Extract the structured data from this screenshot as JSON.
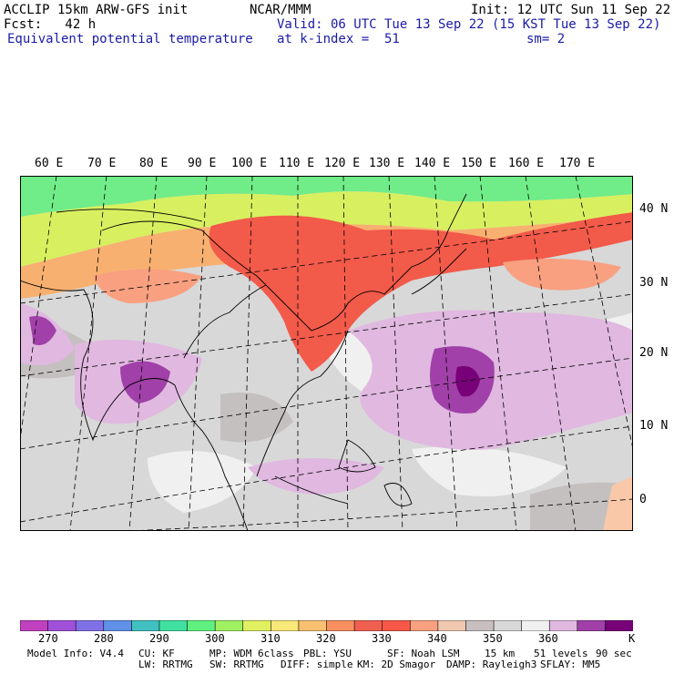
{
  "header": {
    "model_title": "ACCLIP 15km ARW-GFS init",
    "center": "NCAR/MMM",
    "init": "Init: 12 UTC Sun 11 Sep 22",
    "fcst": "Fcst:   42 h",
    "valid": "Valid: 06 UTC Tue 13 Sep 22 (15 KST Tue 13 Sep 22)",
    "field": "Equivalent potential temperature",
    "level": "at k-index =  51",
    "smoothing": "sm= 2"
  },
  "axes": {
    "longitudes": [
      "60 E",
      "70 E",
      "80 E",
      "90 E",
      "100 E",
      "110 E",
      "120 E",
      "130 E",
      "140 E",
      "150 E",
      "160 E",
      "170 E"
    ],
    "latitudes": [
      "40 N",
      "30 N",
      "20 N",
      "10 N",
      "0"
    ]
  },
  "colorbar": {
    "colors": [
      "#c040c0",
      "#a050d8",
      "#8070e8",
      "#6090e8",
      "#40c0c0",
      "#40e0a0",
      "#60f080",
      "#a0f060",
      "#e0f060",
      "#f8e878",
      "#f8c070",
      "#f89060",
      "#f06050",
      "#f85848",
      "#f8a080",
      "#f0c8b0",
      "#c8c0c0",
      "#d8d8d8",
      "#f0f0f0",
      "#e0b8e0",
      "#a040a8",
      "#780078"
    ],
    "labels": [
      "270",
      "280",
      "290",
      "300",
      "310",
      "320",
      "330",
      "340",
      "350",
      "360",
      "K"
    ]
  },
  "footer": {
    "line1": [
      "Model Info: V4.4",
      "CU: KF",
      "MP: WDM 6class",
      "PBL: YSU",
      "SF: Noah LSM",
      "15 km",
      "51 levels",
      "90 sec"
    ],
    "line2": [
      "LW: RRTMG",
      "SW: RRTMG",
      "DIFF: simple",
      "KM: 2D Smagor",
      "DAMP: Rayleigh3",
      "SFLAY: MM5"
    ]
  }
}
